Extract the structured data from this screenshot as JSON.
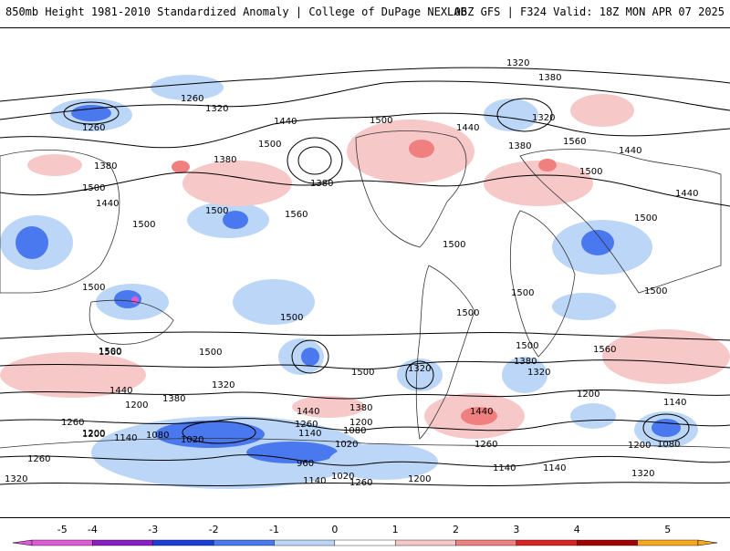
{
  "header": {
    "left_title": "850mb Height 1981-2010 Standardized Anomaly | College of DuPage NEXLAB",
    "right_title": "06Z GFS | F324 Valid: 18Z MON APR 07 2025"
  },
  "colorbar": {
    "ticks": [
      "-5",
      "-4",
      "-3",
      "-2",
      "-1",
      "0",
      "1",
      "2",
      "3",
      "4",
      "5"
    ],
    "colors": [
      "#e05ad8",
      "#8a1fc4",
      "#1e3fd6",
      "#4a78ef",
      "#bcd6f7",
      "#ffffff",
      "#f7c8c8",
      "#f08080",
      "#d82424",
      "#a00000",
      "#f7a81e"
    ]
  },
  "contour_labels": [
    "1320",
    "1380",
    "1260",
    "1320",
    "1260",
    "1440",
    "1500",
    "1380",
    "1380",
    "1500",
    "1440",
    "1500",
    "1500",
    "1560",
    "1380",
    "1440",
    "1500",
    "1500",
    "1440",
    "1320",
    "1380",
    "1560",
    "1500",
    "1440",
    "1500",
    "1500",
    "1500",
    "1500",
    "1500",
    "1500",
    "1500",
    "1500",
    "1560",
    "1500",
    "1500",
    "1320",
    "1380",
    "1320",
    "1560",
    "1440",
    "1200",
    "1380",
    "1260",
    "1320",
    "1440",
    "1380",
    "1200",
    "1260",
    "1140",
    "1080",
    "1200",
    "1080",
    "1020",
    "1140",
    "1200",
    "1020",
    "1260",
    "960",
    "1020",
    "1140",
    "1260",
    "1200",
    "1140",
    "1140",
    "1200",
    "1140",
    "1080",
    "1200",
    "1320",
    "1320",
    "1260",
    "1440"
  ],
  "legend_colors": {
    "neg5": "#e05ad8",
    "neg4": "#8a1fc4",
    "neg3": "#1e3fd6",
    "neg2": "#4a78ef",
    "neg1": "#bcd6f7",
    "pos1": "#f7c8c8",
    "pos2": "#f08080",
    "pos3": "#d82424",
    "pos4": "#a00000",
    "pos5": "#f7a81e"
  }
}
